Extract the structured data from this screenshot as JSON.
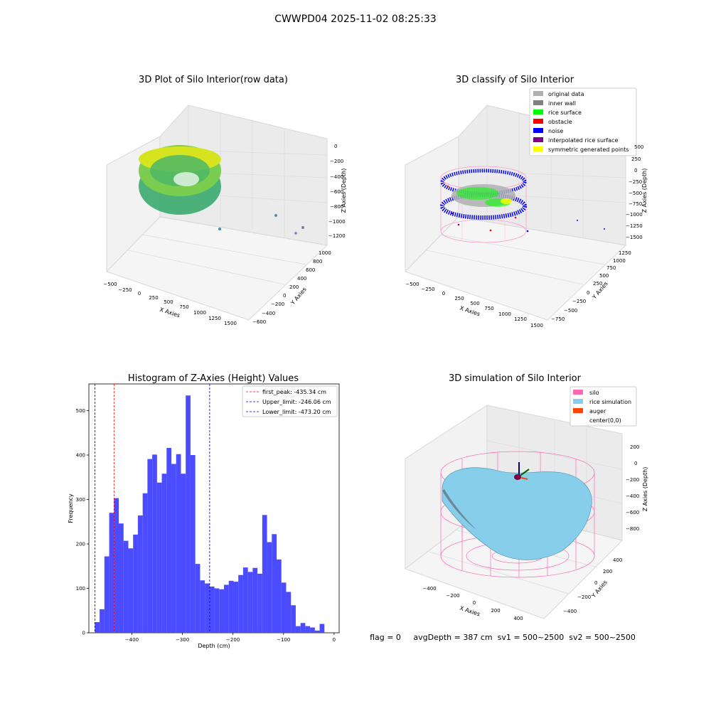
{
  "suptitle": "CWWPD04 2025-11-02 08:25:33",
  "footer": "flag = 0     avgDepth = 387 cm  sv1 = 500~2500  sv2 = 500~2500",
  "colors": {
    "hist": "#4b4bff",
    "peak": "#ff0000",
    "limit": "#0000cc",
    "silo": "#ff69b4",
    "rice": "#87ceeb",
    "auger": "#ff4500",
    "original": "#b0b0b0",
    "inner_wall": "#808080",
    "rice_surface": "#00ff00",
    "obstacle": "#ff0000",
    "noise": "#0000ff",
    "interp_rice": "#800080",
    "symmetric": "#ffff00"
  },
  "panels": {
    "raw": {
      "title": "3D Plot of Silo Interior(row data)",
      "xlabel": "X Axies",
      "ylabel": "Y Axies",
      "zlabel": "Z Axies (Depth)",
      "xticks": [
        "−500",
        "−250",
        "0",
        "250",
        "500",
        "750",
        "1000",
        "1250",
        "1500"
      ],
      "yticks": [
        "−600",
        "−400",
        "−200",
        "0",
        "200",
        "400",
        "600",
        "800",
        "1000"
      ],
      "zticks": [
        "0",
        "−200",
        "−400",
        "−600",
        "−800",
        "−1000",
        "−1200"
      ]
    },
    "classify": {
      "title": "3D classify of Silo Interior",
      "xlabel": "X Axies",
      "ylabel": "Y Axies",
      "zlabel": "Z Axies (Depth)",
      "xticks": [
        "−500",
        "−250",
        "0",
        "250",
        "500",
        "750",
        "1000",
        "1250",
        "1500"
      ],
      "yticks": [
        "−750",
        "−500",
        "−250",
        "0",
        "250",
        "500",
        "750",
        "1000",
        "1250"
      ],
      "zticks": [
        "500",
        "250",
        "0",
        "−250",
        "−500",
        "−750",
        "−1000",
        "−1250",
        "−1500"
      ],
      "legend": [
        {
          "label": "original data",
          "color": "#b0b0b0"
        },
        {
          "label": "inner wall",
          "color": "#808080"
        },
        {
          "label": "rice surface",
          "color": "#00ff00"
        },
        {
          "label": "obstacle",
          "color": "#ff0000"
        },
        {
          "label": "noise",
          "color": "#0000ff"
        },
        {
          "label": "interpolated rice surface",
          "color": "#800080"
        },
        {
          "label": "symmetric generated points",
          "color": "#ffff00"
        }
      ]
    },
    "simulation": {
      "title": "3D simulation of Silo Interior",
      "xlabel": "X Axies",
      "ylabel": "Y Axies",
      "zlabel": "Z Axies (Depth)",
      "xticks": [
        "−400",
        "−200",
        "0",
        "200",
        "400"
      ],
      "yticks": [
        "−400",
        "−200",
        "0",
        "200",
        "400"
      ],
      "zticks": [
        "200",
        "0",
        "−200",
        "−400",
        "−600",
        "−800"
      ],
      "legend": [
        {
          "label": "silo",
          "color": "#ff69b4"
        },
        {
          "label": "rice simulation",
          "color": "#87ceeb"
        },
        {
          "label": "auger",
          "color": "#ff4500"
        },
        {
          "label": "center(0,0)",
          "color": "#ffffff"
        }
      ]
    }
  },
  "chart_data": {
    "type": "bar",
    "title": "Histogram of Z-Axies (Height) Values",
    "xlabel": "Depth (cm)",
    "ylabel": "Frequency",
    "xlim": [
      -485,
      10
    ],
    "ylim": [
      0,
      560
    ],
    "xticks": [
      -400,
      -300,
      -200,
      -100,
      0
    ],
    "xtick_labels": [
      "−400",
      "−300",
      "−200",
      "−100",
      "0"
    ],
    "yticks": [
      0,
      100,
      200,
      300,
      400,
      500
    ],
    "bin_start": -473.2,
    "bin_width": 9.46,
    "values": [
      24,
      53,
      172,
      270,
      303,
      246,
      207,
      190,
      221,
      264,
      314,
      391,
      401,
      338,
      358,
      416,
      380,
      402,
      358,
      534,
      400,
      155,
      118,
      111,
      104,
      100,
      98,
      108,
      117,
      115,
      130,
      147,
      137,
      146,
      133,
      265,
      204,
      222,
      165,
      113,
      92,
      62,
      15,
      22,
      15,
      12,
      5,
      20
    ],
    "vlines": [
      {
        "name": "first_peak",
        "x": -435.34,
        "style": "dashed",
        "color": "#ff0000",
        "label": "first_peak: -435.34 cm"
      },
      {
        "name": "Upper_limit",
        "x": -246.06,
        "style": "dashed",
        "color": "#0000cc",
        "label": "Upper_limit: -246.06 cm"
      },
      {
        "name": "Lower_limit",
        "x": -473.2,
        "style": "dashed",
        "color": "#0000cc",
        "label": "Lower_limit: -473.20 cm"
      }
    ],
    "legend_position": "top-right"
  }
}
